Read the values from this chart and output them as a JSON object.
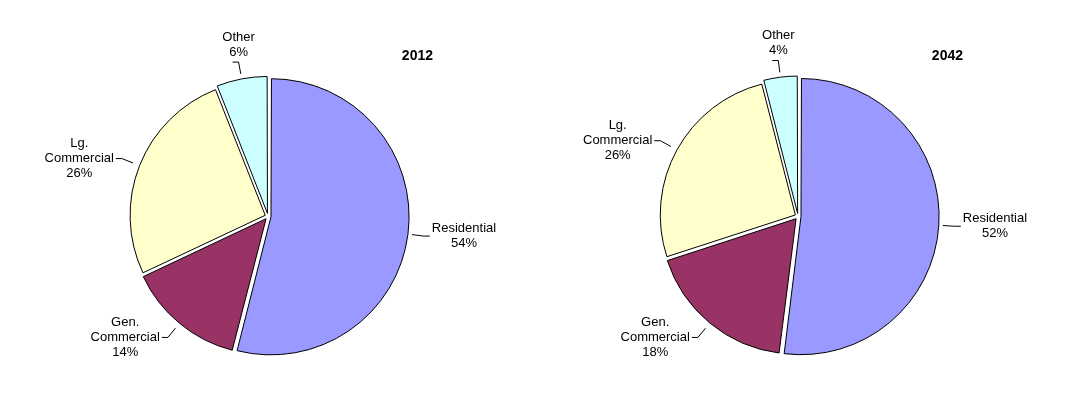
{
  "chart_data": [
    {
      "type": "pie",
      "title": "2012",
      "categories": [
        "Residential",
        "Gen. Commercial",
        "Lg. Commercial",
        "Other"
      ],
      "values": [
        54,
        14,
        26,
        6
      ],
      "colors": [
        "#9999ff",
        "#993366",
        "#ffffcc",
        "#ccffff"
      ],
      "value_labels": [
        "54%",
        "14%",
        "26%",
        "6%"
      ]
    },
    {
      "type": "pie",
      "title": "2042",
      "categories": [
        "Residential",
        "Gen. Commercial",
        "Lg. Commercial",
        "Other"
      ],
      "values": [
        52,
        18,
        26,
        4
      ],
      "colors": [
        "#9999ff",
        "#993366",
        "#ffffcc",
        "#ccffff"
      ],
      "value_labels": [
        "52%",
        "18%",
        "26%",
        "4%"
      ]
    }
  ]
}
